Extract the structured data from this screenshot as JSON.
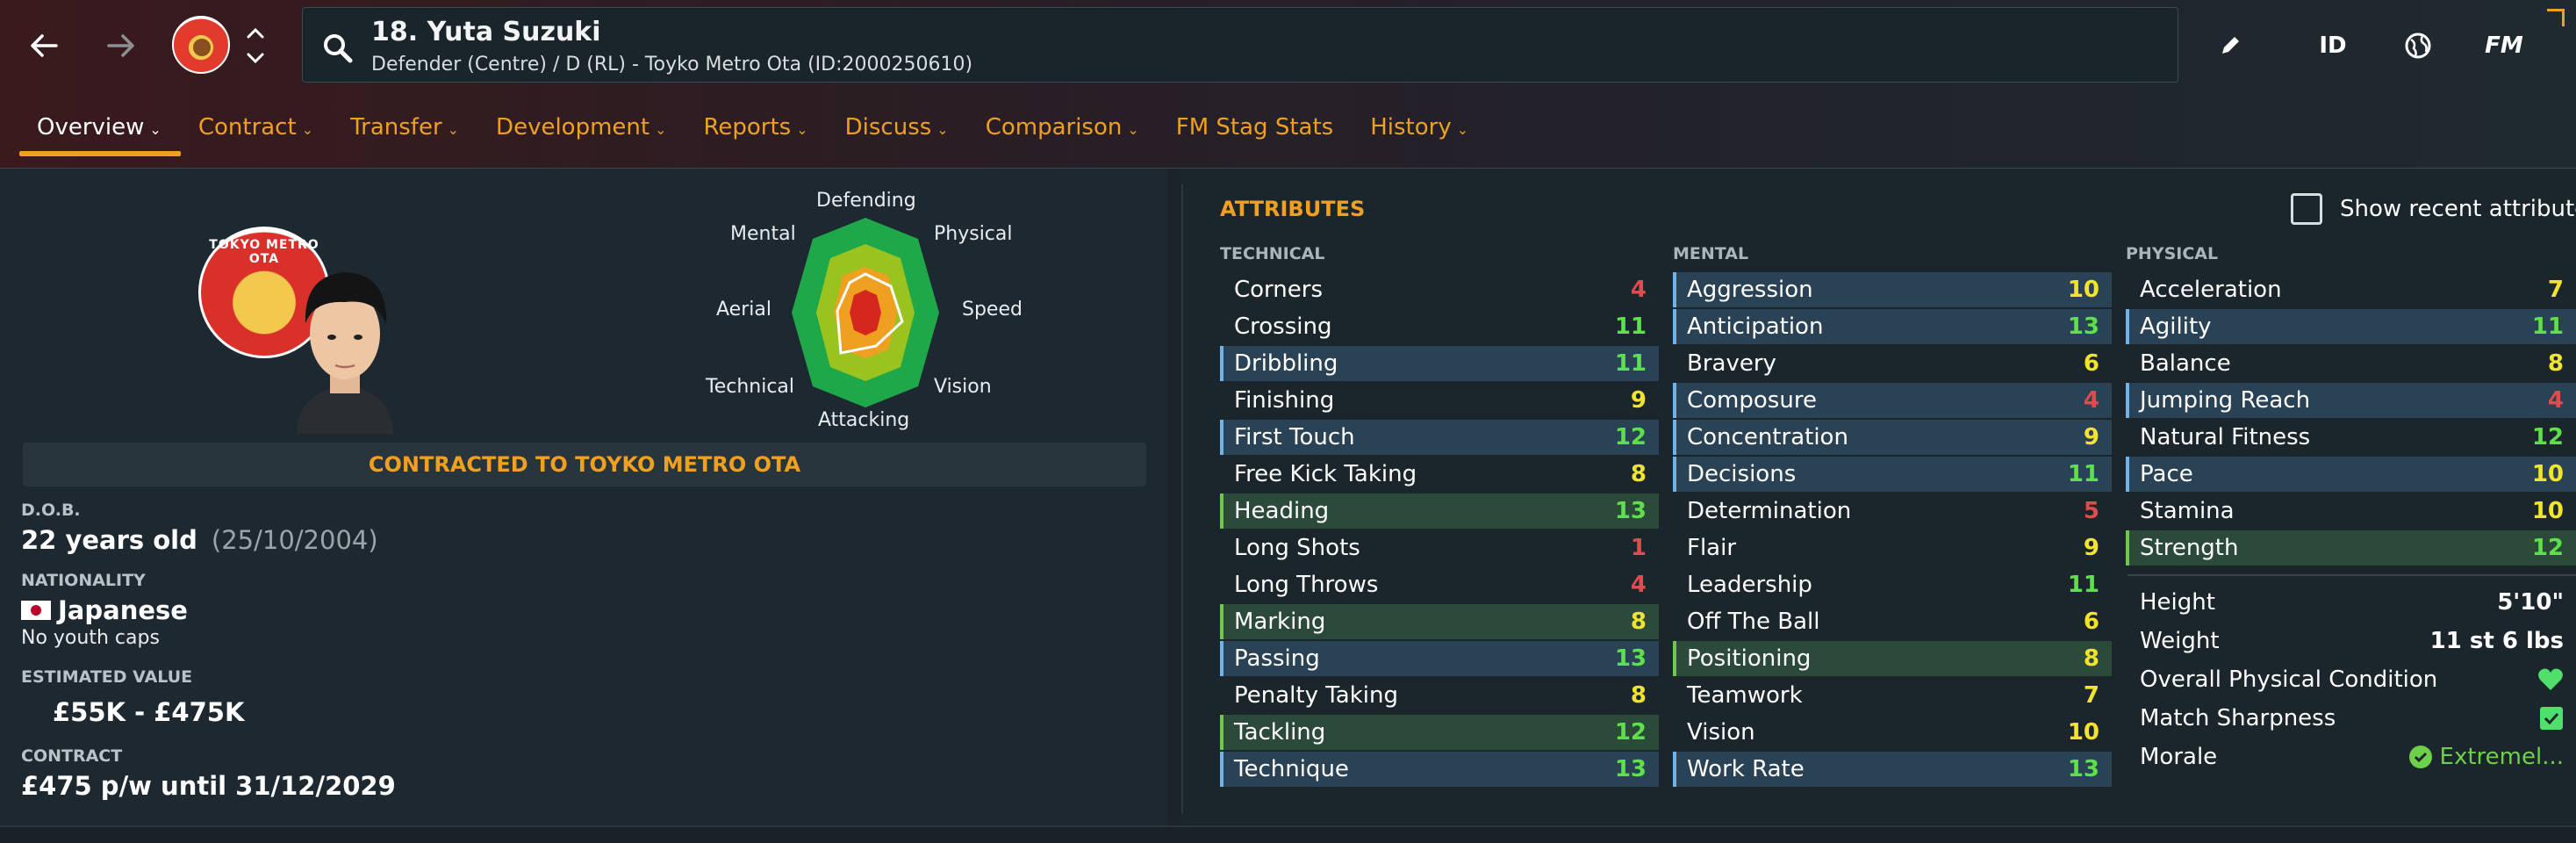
{
  "header": {
    "player_title": "18. Yuta Suzuki",
    "player_subtitle": "Defender (Centre) / D (RL) - Toyko Metro Ota (ID:2000250610)",
    "icons": [
      "back-icon",
      "forward-icon",
      "club-badge",
      "updown-icon",
      "search-icon",
      "pencil-icon",
      "globe-icon"
    ],
    "id_label": "ID",
    "fm_label": "FM"
  },
  "tabs": [
    {
      "label": "Overview",
      "chevron": true
    },
    {
      "label": "Contract",
      "chevron": true
    },
    {
      "label": "Transfer",
      "chevron": true
    },
    {
      "label": "Development",
      "chevron": true
    },
    {
      "label": "Reports",
      "chevron": true
    },
    {
      "label": "Discuss",
      "chevron": true
    },
    {
      "label": "Comparison",
      "chevron": true
    },
    {
      "label": "FM Stag Stats",
      "chevron": false
    },
    {
      "label": "History",
      "chevron": true
    }
  ],
  "profile": {
    "badge_text": "TOKYO METRO OTA",
    "radar_labels": {
      "defending": "Defending",
      "physical": "Physical",
      "speed": "Speed",
      "vision": "Vision",
      "attacking": "Attacking",
      "technical": "Technical",
      "aerial": "Aerial",
      "mental": "Mental"
    },
    "contract_banner": "CONTRACTED TO TOYKO METRO OTA",
    "dob_label": "D.O.B.",
    "dob_age": "22 years old",
    "dob_date": "(25/10/2004)",
    "nationality_label": "NATIONALITY",
    "nationality": "Japanese",
    "youth_caps": "No youth caps",
    "value_label": "ESTIMATED VALUE",
    "value": "£55K - £475K",
    "contract_label": "CONTRACT",
    "contract": "£475 p/w until 31/12/2029"
  },
  "attributes": {
    "title": "ATTRIBUTES",
    "show_recent": "Show recent attribute",
    "technical_label": "TECHNICAL",
    "mental_label": "MENTAL",
    "physical_label": "PHYSICAL",
    "technical": [
      {
        "name": "Corners",
        "value": "4",
        "color": "red",
        "hl": ""
      },
      {
        "name": "Crossing",
        "value": "11",
        "color": "grn",
        "hl": ""
      },
      {
        "name": "Dribbling",
        "value": "11",
        "color": "grn",
        "hl": "blue"
      },
      {
        "name": "Finishing",
        "value": "9",
        "color": "yel",
        "hl": ""
      },
      {
        "name": "First Touch",
        "value": "12",
        "color": "grn",
        "hl": "blue"
      },
      {
        "name": "Free Kick Taking",
        "value": "8",
        "color": "yel",
        "hl": ""
      },
      {
        "name": "Heading",
        "value": "13",
        "color": "grn",
        "hl": "green"
      },
      {
        "name": "Long Shots",
        "value": "1",
        "color": "red",
        "hl": ""
      },
      {
        "name": "Long Throws",
        "value": "4",
        "color": "red",
        "hl": ""
      },
      {
        "name": "Marking",
        "value": "8",
        "color": "yel",
        "hl": "green"
      },
      {
        "name": "Passing",
        "value": "13",
        "color": "grn",
        "hl": "blue"
      },
      {
        "name": "Penalty Taking",
        "value": "8",
        "color": "yel",
        "hl": ""
      },
      {
        "name": "Tackling",
        "value": "12",
        "color": "grn",
        "hl": "green"
      },
      {
        "name": "Technique",
        "value": "13",
        "color": "grn",
        "hl": "blue"
      }
    ],
    "mental": [
      {
        "name": "Aggression",
        "value": "10",
        "color": "yel",
        "hl": "blue"
      },
      {
        "name": "Anticipation",
        "value": "13",
        "color": "grn",
        "hl": "blue"
      },
      {
        "name": "Bravery",
        "value": "6",
        "color": "yel",
        "hl": ""
      },
      {
        "name": "Composure",
        "value": "4",
        "color": "red",
        "hl": "blue"
      },
      {
        "name": "Concentration",
        "value": "9",
        "color": "yel",
        "hl": "blue"
      },
      {
        "name": "Decisions",
        "value": "11",
        "color": "grn",
        "hl": "blue"
      },
      {
        "name": "Determination",
        "value": "5",
        "color": "red",
        "hl": ""
      },
      {
        "name": "Flair",
        "value": "9",
        "color": "yel",
        "hl": ""
      },
      {
        "name": "Leadership",
        "value": "11",
        "color": "grn",
        "hl": ""
      },
      {
        "name": "Off The Ball",
        "value": "6",
        "color": "yel",
        "hl": ""
      },
      {
        "name": "Positioning",
        "value": "8",
        "color": "yel",
        "hl": "green"
      },
      {
        "name": "Teamwork",
        "value": "7",
        "color": "yel",
        "hl": ""
      },
      {
        "name": "Vision",
        "value": "10",
        "color": "yel",
        "hl": ""
      },
      {
        "name": "Work Rate",
        "value": "13",
        "color": "grn",
        "hl": "blue"
      }
    ],
    "physical": [
      {
        "name": "Acceleration",
        "value": "7",
        "color": "yel",
        "hl": ""
      },
      {
        "name": "Agility",
        "value": "11",
        "color": "grn",
        "hl": "blue"
      },
      {
        "name": "Balance",
        "value": "8",
        "color": "yel",
        "hl": ""
      },
      {
        "name": "Jumping Reach",
        "value": "4",
        "color": "red",
        "hl": "blue"
      },
      {
        "name": "Natural Fitness",
        "value": "12",
        "color": "grn",
        "hl": ""
      },
      {
        "name": "Pace",
        "value": "10",
        "color": "yel",
        "hl": "blue"
      },
      {
        "name": "Stamina",
        "value": "10",
        "color": "yel",
        "hl": ""
      },
      {
        "name": "Strength",
        "value": "12",
        "color": "grn",
        "hl": "green"
      }
    ],
    "extras": [
      {
        "name": "Height",
        "value": "5'10\""
      },
      {
        "name": "Weight",
        "value": "11 st 6 lbs"
      },
      {
        "name": "Overall Physical Condition",
        "value": "",
        "icon": "heart-icon"
      },
      {
        "name": "Match Sharpness",
        "value": "",
        "icon": "check-box-icon"
      },
      {
        "name": "Morale",
        "value": "Extremel...",
        "icon": "check-circle-icon"
      }
    ]
  },
  "colors": {
    "accent": "#f0a020",
    "red": "#e24b4b",
    "yellow": "#f2e42c",
    "green": "#5ee04a"
  }
}
